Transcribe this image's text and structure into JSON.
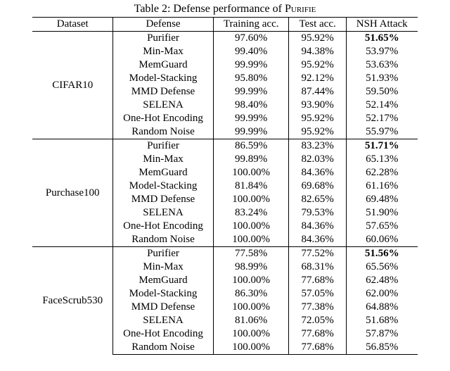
{
  "caption_prefix": "Table 2: Defense performance of ",
  "caption_smallcaps": "Purifie",
  "columns": [
    "Dataset",
    "Defense",
    "Training acc.",
    "Test acc.",
    "NSH Attack"
  ],
  "groups": [
    {
      "dataset": "CIFAR10",
      "rows": [
        {
          "defense": "Purifier",
          "train": "97.60%",
          "test": "95.92%",
          "attack": "51.65%",
          "attack_bold": true
        },
        {
          "defense": "Min-Max",
          "train": "99.40%",
          "test": "94.38%",
          "attack": "53.97%"
        },
        {
          "defense": "MemGuard",
          "train": "99.99%",
          "test": "95.92%",
          "attack": "53.63%"
        },
        {
          "defense": "Model-Stacking",
          "train": "95.80%",
          "test": "92.12%",
          "attack": "51.93%"
        },
        {
          "defense": "MMD Defense",
          "train": "99.99%",
          "test": "87.44%",
          "attack": "59.50%"
        },
        {
          "defense": "SELENA",
          "train": "98.40%",
          "test": "93.90%",
          "attack": "52.14%"
        },
        {
          "defense": "One-Hot Encoding",
          "train": "99.99%",
          "test": "95.92%",
          "attack": "52.17%"
        },
        {
          "defense": "Random Noise",
          "train": "99.99%",
          "test": "95.92%",
          "attack": "55.97%"
        }
      ]
    },
    {
      "dataset": "Purchase100",
      "rows": [
        {
          "defense": "Purifier",
          "train": "86.59%",
          "test": "83.23%",
          "attack": "51.71%",
          "attack_bold": true
        },
        {
          "defense": "Min-Max",
          "train": "99.89%",
          "test": "82.03%",
          "attack": "65.13%"
        },
        {
          "defense": "MemGuard",
          "train": "100.00%",
          "test": "84.36%",
          "attack": "62.28%"
        },
        {
          "defense": "Model-Stacking",
          "train": "81.84%",
          "test": "69.68%",
          "attack": "61.16%"
        },
        {
          "defense": "MMD Defense",
          "train": "100.00%",
          "test": "82.65%",
          "attack": "69.48%"
        },
        {
          "defense": "SELENA",
          "train": "83.24%",
          "test": "79.53%",
          "attack": "51.90%"
        },
        {
          "defense": "One-Hot Encoding",
          "train": "100.00%",
          "test": "84.36%",
          "attack": "57.65%"
        },
        {
          "defense": "Random Noise",
          "train": "100.00%",
          "test": "84.36%",
          "attack": "60.06%"
        }
      ]
    },
    {
      "dataset": "FaceScrub530",
      "rows": [
        {
          "defense": "Purifier",
          "train": "77.58%",
          "test": "77.52%",
          "attack": "51.56%",
          "attack_bold": true
        },
        {
          "defense": "Min-Max",
          "train": "98.99%",
          "test": "68.31%",
          "attack": "65.56%"
        },
        {
          "defense": "MemGuard",
          "train": "100.00%",
          "test": "77.68%",
          "attack": "62.48%"
        },
        {
          "defense": "Model-Stacking",
          "train": "86.30%",
          "test": "57.05%",
          "attack": "62.00%"
        },
        {
          "defense": "MMD Defense",
          "train": "100.00%",
          "test": "77.38%",
          "attack": "64.88%"
        },
        {
          "defense": "SELENA",
          "train": "81.06%",
          "test": "72.05%",
          "attack": "51.68%"
        },
        {
          "defense": "One-Hot Encoding",
          "train": "100.00%",
          "test": "77.68%",
          "attack": "57.87%"
        },
        {
          "defense": "Random Noise",
          "train": "100.00%",
          "test": "77.68%",
          "attack": "56.85%"
        }
      ]
    }
  ]
}
